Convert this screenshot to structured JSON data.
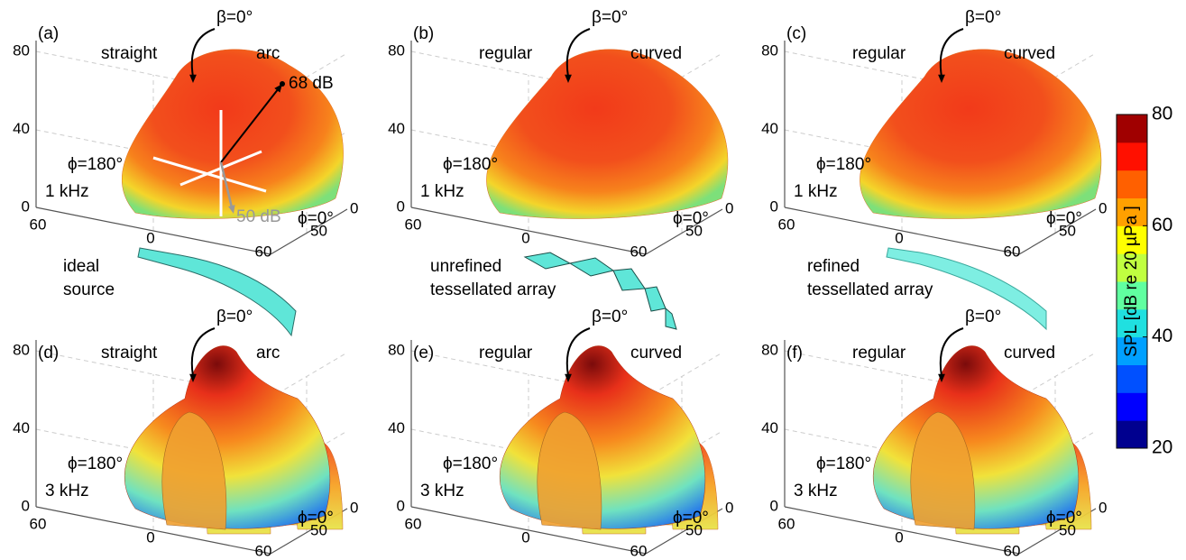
{
  "panels": [
    {
      "label": "(a)",
      "beta": "β=0°",
      "left": "straight",
      "right": "arc",
      "phi_back": "ϕ=180°",
      "freq": "1 kHz",
      "phi_front": "ϕ=0°",
      "z_ticks": [
        80,
        40,
        0
      ],
      "x_ticks": [
        60,
        0,
        60
      ],
      "y_ticks": [
        50,
        0
      ],
      "arrow_labels": [
        "68 dB",
        "50 dB"
      ]
    },
    {
      "label": "(b)",
      "beta": "β=0°",
      "left": "regular",
      "right": "curved",
      "phi_back": "ϕ=180°",
      "freq": "1 kHz",
      "phi_front": "ϕ=0°",
      "z_ticks": [
        80,
        40,
        0
      ],
      "x_ticks": [
        60,
        0,
        60
      ],
      "y_ticks": [
        50,
        0
      ]
    },
    {
      "label": "(c)",
      "beta": "β=0°",
      "left": "regular",
      "right": "curved",
      "phi_back": "ϕ=180°",
      "freq": "1 kHz",
      "phi_front": "ϕ=0°",
      "z_ticks": [
        80,
        40,
        0
      ],
      "x_ticks": [
        60,
        0,
        60
      ],
      "y_ticks": [
        50,
        0
      ]
    },
    {
      "label": "(d)",
      "beta": "β=0°",
      "left": "straight",
      "right": "arc",
      "phi_back": "ϕ=180°",
      "freq": "3 kHz",
      "phi_front": "ϕ=0°",
      "z_ticks": [
        80,
        40,
        0
      ],
      "x_ticks": [
        60,
        0,
        60
      ],
      "y_ticks": [
        50,
        0
      ]
    },
    {
      "label": "(e)",
      "beta": "β=0°",
      "left": "regular",
      "right": "curved",
      "phi_back": "ϕ=180°",
      "freq": "3 kHz",
      "phi_front": "ϕ=0°",
      "z_ticks": [
        80,
        40,
        0
      ],
      "x_ticks": [
        60,
        0,
        60
      ],
      "y_ticks": [
        50,
        0
      ]
    },
    {
      "label": "(f)",
      "beta": "β=0°",
      "left": "regular",
      "right": "curved",
      "phi_back": "ϕ=180°",
      "freq": "3 kHz",
      "phi_front": "ϕ=0°",
      "z_ticks": [
        80,
        40,
        0
      ],
      "x_ticks": [
        60,
        0,
        60
      ],
      "y_ticks": [
        50,
        0
      ]
    }
  ],
  "sources": [
    {
      "lines": [
        "ideal",
        "source"
      ]
    },
    {
      "lines": [
        "unrefined",
        "tessellated array"
      ]
    },
    {
      "lines": [
        "refined",
        "tessellated array"
      ]
    }
  ],
  "colorbar": {
    "label": "SPL [dB re 20 µPa ]",
    "clim": [
      20,
      80
    ],
    "ticks": [
      20,
      40,
      60,
      80
    ]
  }
}
